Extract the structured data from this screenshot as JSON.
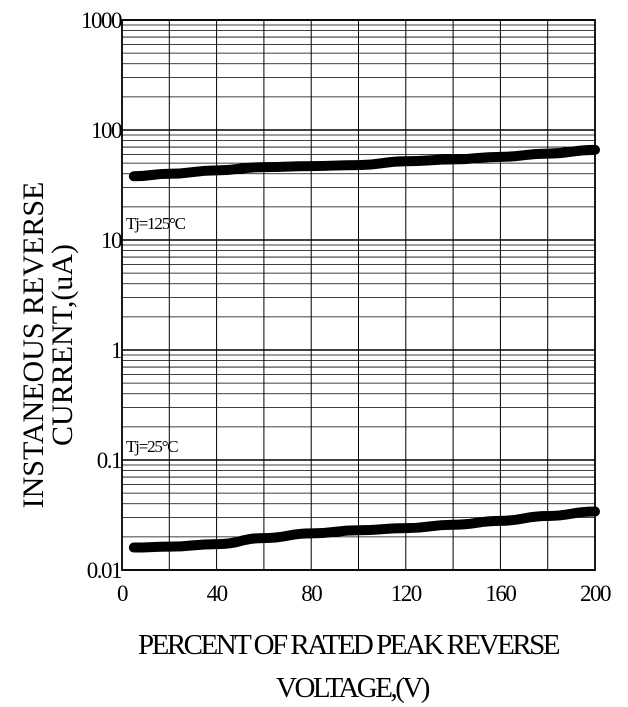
{
  "chart_data": {
    "type": "line",
    "title": "",
    "ylabel_line1": "INSTANEOUS REVERSE",
    "ylabel_line2": "CURRENT,(uA)",
    "xlabel_line1": "PERCENT OF RATED PEAK REVERSE",
    "xlabel_line2": "VOLTAGE,(V)",
    "xlim": [
      0,
      200
    ],
    "ylim": [
      0.01,
      1000
    ],
    "yscale": "log",
    "grid": true,
    "x_ticks": [
      0,
      40,
      80,
      120,
      160,
      200
    ],
    "x_tick_labels": [
      "0",
      "40",
      "80",
      "120",
      "160",
      "200"
    ],
    "y_ticks": [
      0.01,
      0.1,
      1,
      10,
      100,
      1000
    ],
    "y_tick_labels": [
      "0.01",
      "0.1",
      "1",
      "10",
      "100",
      "1000"
    ],
    "series": [
      {
        "annotation": "Tj=125°C",
        "color": "#000000",
        "x": [
          5,
          20,
          40,
          60,
          80,
          100,
          120,
          140,
          160,
          180,
          200
        ],
        "y": [
          38,
          40,
          43,
          46,
          47,
          48,
          52,
          54,
          57,
          61,
          66
        ]
      },
      {
        "annotation": "Tj=25°C",
        "color": "#000000",
        "x": [
          5,
          20,
          40,
          60,
          80,
          100,
          120,
          140,
          160,
          180,
          200
        ],
        "y": [
          0.016,
          0.0163,
          0.0172,
          0.0195,
          0.0215,
          0.023,
          0.024,
          0.0258,
          0.028,
          0.031,
          0.034
        ]
      }
    ]
  }
}
